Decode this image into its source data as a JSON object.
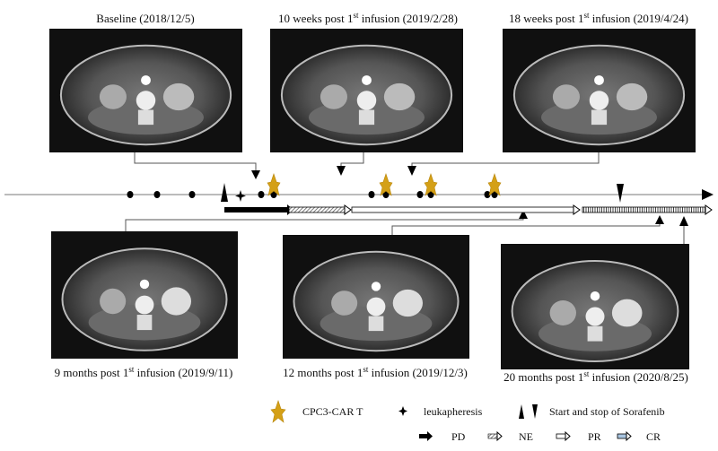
{
  "scans": [
    {
      "caption": "Baseline (2018/12/5)"
    },
    {
      "caption_pre": "10 weeks post 1",
      "sup": "st",
      "caption_post": " infusion (2019/2/28)"
    },
    {
      "caption_pre": "18 weeks post 1",
      "sup": "st",
      "caption_post": " infusion (2019/4/24)"
    },
    {
      "caption_pre": "9 months post 1",
      "sup": "st",
      "caption_post": " infusion (2019/9/11)"
    },
    {
      "caption_pre": "12 months post 1",
      "sup": "st",
      "caption_post": " infusion (2019/12/3)"
    },
    {
      "caption_pre": "20 months post 1",
      "sup": "st",
      "caption_post": " infusion (2020/8/25)"
    }
  ],
  "legend": {
    "car_t": "CPC3-CAR T",
    "leukapheresis": "leukapheresis",
    "sorafenib": "Start and stop of Sorafenib",
    "pd": "PD",
    "ne": "NE",
    "pr": "PR",
    "cr": "CR"
  },
  "colors": {
    "star": "#d4a017",
    "line": "#000000",
    "scan_bg": "#101010"
  }
}
